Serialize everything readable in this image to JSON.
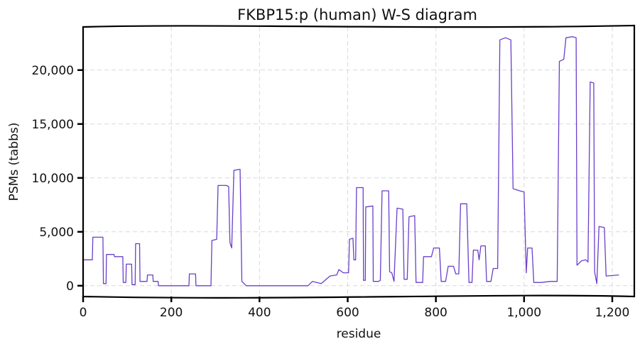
{
  "chart_data": {
    "type": "line",
    "title": "FKBP15:p (human) W-S diagram",
    "xlabel": "residue",
    "ylabel": "PSMs (tabbs)",
    "xlim": [
      0,
      1250
    ],
    "ylim": [
      -1000,
      24000
    ],
    "xticks": [
      0,
      200,
      400,
      600,
      800,
      1000,
      1200
    ],
    "xtick_labels": [
      "0",
      "200",
      "400",
      "600",
      "800",
      "1,000",
      "1,200"
    ],
    "yticks": [
      0,
      5000,
      10000,
      15000,
      20000
    ],
    "ytick_labels": [
      "0",
      "5,000",
      "10,000",
      "15,000",
      "20,000"
    ],
    "grid": true,
    "series": [
      {
        "color": "#6a3fcb",
        "points": [
          [
            0,
            2400
          ],
          [
            21,
            2400
          ],
          [
            22,
            4500
          ],
          [
            45,
            4500
          ],
          [
            46,
            200
          ],
          [
            52,
            200
          ],
          [
            53,
            2900
          ],
          [
            70,
            2900
          ],
          [
            71,
            2700
          ],
          [
            90,
            2700
          ],
          [
            91,
            300
          ],
          [
            97,
            300
          ],
          [
            98,
            2000
          ],
          [
            110,
            2000
          ],
          [
            111,
            100
          ],
          [
            118,
            100
          ],
          [
            119,
            3900
          ],
          [
            128,
            3900
          ],
          [
            129,
            400
          ],
          [
            145,
            400
          ],
          [
            146,
            1000
          ],
          [
            158,
            1000
          ],
          [
            159,
            400
          ],
          [
            170,
            400
          ],
          [
            171,
            0
          ],
          [
            240,
            0
          ],
          [
            241,
            1100
          ],
          [
            255,
            1100
          ],
          [
            256,
            0
          ],
          [
            290,
            0
          ],
          [
            292,
            4200
          ],
          [
            303,
            4300
          ],
          [
            306,
            9300
          ],
          [
            325,
            9300
          ],
          [
            330,
            9200
          ],
          [
            333,
            4000
          ],
          [
            337,
            3500
          ],
          [
            342,
            10700
          ],
          [
            356,
            10800
          ],
          [
            360,
            400
          ],
          [
            370,
            0
          ],
          [
            430,
            0
          ],
          [
            510,
            0
          ],
          [
            520,
            400
          ],
          [
            540,
            200
          ],
          [
            560,
            900
          ],
          [
            575,
            1000
          ],
          [
            580,
            1500
          ],
          [
            590,
            1200
          ],
          [
            602,
            1200
          ],
          [
            604,
            4300
          ],
          [
            612,
            4400
          ],
          [
            614,
            2400
          ],
          [
            618,
            2400
          ],
          [
            620,
            9100
          ],
          [
            635,
            9100
          ],
          [
            636,
            500
          ],
          [
            640,
            500
          ],
          [
            641,
            7300
          ],
          [
            657,
            7400
          ],
          [
            658,
            400
          ],
          [
            670,
            400
          ],
          [
            674,
            500
          ],
          [
            678,
            8800
          ],
          [
            693,
            8800
          ],
          [
            695,
            1300
          ],
          [
            700,
            1200
          ],
          [
            705,
            400
          ],
          [
            712,
            7200
          ],
          [
            725,
            7100
          ],
          [
            728,
            600
          ],
          [
            735,
            600
          ],
          [
            739,
            6400
          ],
          [
            752,
            6500
          ],
          [
            755,
            300
          ],
          [
            770,
            300
          ],
          [
            772,
            2700
          ],
          [
            790,
            2700
          ],
          [
            795,
            3500
          ],
          [
            808,
            3500
          ],
          [
            812,
            400
          ],
          [
            822,
            400
          ],
          [
            828,
            1800
          ],
          [
            840,
            1800
          ],
          [
            845,
            1100
          ],
          [
            852,
            1100
          ],
          [
            856,
            7600
          ],
          [
            870,
            7600
          ],
          [
            875,
            300
          ],
          [
            882,
            300
          ],
          [
            885,
            3300
          ],
          [
            895,
            3300
          ],
          [
            898,
            2400
          ],
          [
            902,
            3700
          ],
          [
            912,
            3700
          ],
          [
            915,
            400
          ],
          [
            925,
            400
          ],
          [
            930,
            1600
          ],
          [
            940,
            1600
          ],
          [
            945,
            22800
          ],
          [
            958,
            23000
          ],
          [
            970,
            22800
          ],
          [
            975,
            9000
          ],
          [
            990,
            8800
          ],
          [
            1000,
            8700
          ],
          [
            1005,
            1200
          ],
          [
            1008,
            3500
          ],
          [
            1018,
            3500
          ],
          [
            1022,
            300
          ],
          [
            1040,
            300
          ],
          [
            1060,
            400
          ],
          [
            1075,
            400
          ],
          [
            1080,
            20800
          ],
          [
            1090,
            21000
          ],
          [
            1095,
            23000
          ],
          [
            1110,
            23100
          ],
          [
            1118,
            23000
          ],
          [
            1120,
            1900
          ],
          [
            1130,
            2300
          ],
          [
            1140,
            2400
          ],
          [
            1145,
            2200
          ],
          [
            1150,
            18900
          ],
          [
            1158,
            18800
          ],
          [
            1160,
            1300
          ],
          [
            1165,
            200
          ],
          [
            1170,
            5500
          ],
          [
            1182,
            5400
          ],
          [
            1186,
            900
          ],
          [
            1215,
            1000
          ]
        ]
      }
    ]
  }
}
